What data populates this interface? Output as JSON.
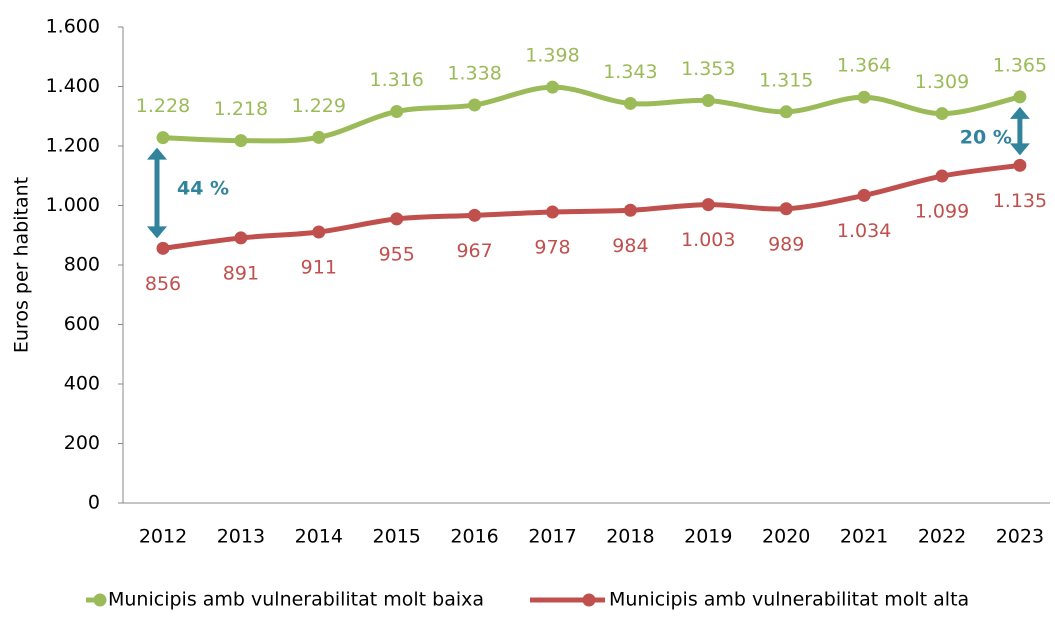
{
  "chart_data": {
    "type": "line",
    "categories": [
      "2012",
      "2013",
      "2014",
      "2015",
      "2016",
      "2017",
      "2018",
      "2019",
      "2020",
      "2021",
      "2022",
      "2023"
    ],
    "series": [
      {
        "name": "Municipis amb vulnerabilitat molt baixa",
        "color": "#9bbb59",
        "values": [
          1228,
          1218,
          1229,
          1316,
          1338,
          1398,
          1343,
          1353,
          1315,
          1364,
          1309,
          1365
        ],
        "value_labels": [
          "1.228",
          "1.218",
          "1.229",
          "1.316",
          "1.338",
          "1.398",
          "1.343",
          "1.353",
          "1.315",
          "1.364",
          "1.309",
          "1.365"
        ]
      },
      {
        "name": "Municipis amb vulnerabilitat molt alta",
        "color": "#c0504d",
        "values": [
          856,
          891,
          911,
          955,
          967,
          978,
          984,
          1003,
          989,
          1034,
          1099,
          1135
        ],
        "value_labels": [
          "856",
          "891",
          "911",
          "955",
          "967",
          "978",
          "984",
          "1.003",
          "989",
          "1.034",
          "1.099",
          "1.135"
        ]
      }
    ],
    "ylabel": "Euros per habitant",
    "ylim": [
      0,
      1600
    ],
    "yticks": [
      0,
      200,
      400,
      600,
      800,
      {
        "value": 1000,
        "label": "1.000"
      },
      {
        "value": 1200,
        "label": "1.200"
      },
      {
        "value": 1400,
        "label": "1.400"
      },
      {
        "value": 1600,
        "label": "1.600"
      }
    ],
    "annotations": [
      {
        "text": "44 %",
        "color": "#31849b"
      },
      {
        "text": "20 %",
        "color": "#31849b"
      }
    ],
    "legend": "bottom"
  }
}
